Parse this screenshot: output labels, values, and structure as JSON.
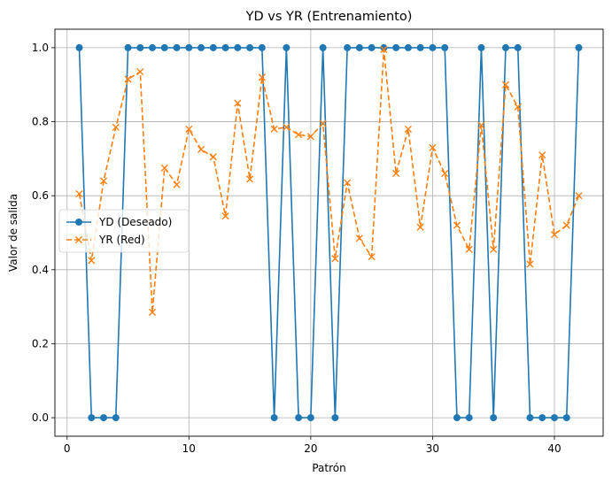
{
  "chart_data": {
    "type": "line",
    "title": "YD vs YR (Entrenamiento)",
    "xlabel": "Patrón",
    "ylabel": "Valor de salida",
    "xlim": [
      -1,
      44
    ],
    "ylim": [
      -0.05,
      1.05
    ],
    "xticks": [
      0,
      10,
      20,
      30,
      40
    ],
    "yticks": [
      0.0,
      0.2,
      0.4,
      0.6,
      0.8,
      1.0
    ],
    "xtick_labels": [
      "0",
      "10",
      "20",
      "30",
      "40"
    ],
    "ytick_labels": [
      "0.0",
      "0.2",
      "0.4",
      "0.6",
      "0.8",
      "1.0"
    ],
    "grid": true,
    "legend_position": "center-left",
    "x": [
      1,
      2,
      3,
      4,
      5,
      6,
      7,
      8,
      9,
      10,
      11,
      12,
      13,
      14,
      15,
      16,
      17,
      18,
      19,
      20,
      21,
      22,
      23,
      24,
      25,
      26,
      27,
      28,
      29,
      30,
      31,
      32,
      33,
      34,
      35,
      36,
      37,
      38,
      39,
      40,
      41,
      42
    ],
    "series": [
      {
        "name": "YD (Deseado)",
        "color": "#1f77b4",
        "line_style": "solid",
        "marker": "circle",
        "values": [
          1,
          0,
          0,
          0,
          1,
          1,
          1,
          1,
          1,
          1,
          1,
          1,
          1,
          1,
          1,
          1,
          0,
          1,
          0,
          0,
          1,
          0,
          1,
          1,
          1,
          1,
          1,
          1,
          1,
          1,
          1,
          0,
          0,
          1,
          0,
          1,
          1,
          0,
          0,
          0,
          0,
          1
        ]
      },
      {
        "name": "YR (Red)",
        "color": "#ff7f0e",
        "line_style": "dashed",
        "marker": "x",
        "values": [
          0.605,
          0.425,
          0.64,
          0.785,
          0.915,
          0.935,
          0.285,
          0.675,
          0.63,
          0.78,
          0.725,
          0.705,
          0.545,
          0.85,
          0.645,
          0.92,
          0.78,
          0.785,
          0.765,
          0.76,
          0.795,
          0.43,
          0.635,
          0.485,
          0.435,
          0.995,
          0.66,
          0.78,
          0.515,
          0.73,
          0.66,
          0.52,
          0.455,
          0.79,
          0.455,
          0.9,
          0.84,
          0.415,
          0.71,
          0.495,
          0.52,
          0.6
        ]
      }
    ]
  }
}
